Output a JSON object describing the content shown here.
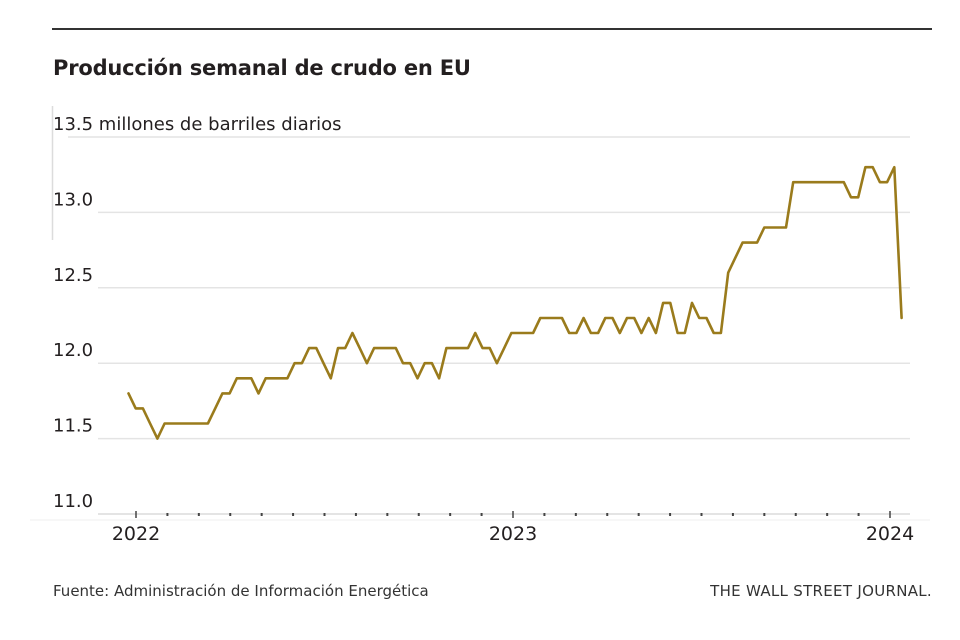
{
  "header": {
    "title": "Producción semanal de crudo en EU"
  },
  "footer": {
    "source": "Fuente: Administración de Información Energética",
    "brand": "THE WALL STREET JOURNAL."
  },
  "colors": {
    "line": "#9a7b1c",
    "grid": "#e4e4e4",
    "axis": "#dcdcdc",
    "text": "#231f20"
  },
  "chart_data": {
    "type": "line",
    "title": "Producción semanal de crudo en EU",
    "ylabel": "millones de barriles diarios",
    "xlabel": "",
    "ylim": [
      11.0,
      13.5
    ],
    "yticks": [
      11.0,
      11.5,
      12.0,
      12.5,
      13.0,
      13.5
    ],
    "ytick_labels": [
      "11.0",
      "11.5",
      "12.0",
      "12.5",
      "13.0",
      "13.5 millones de barriles diarios"
    ],
    "xlim_years": [
      2021.98,
      2024.05
    ],
    "xticks_major": [
      2022,
      2023,
      2024
    ],
    "xtick_labels": [
      "2022",
      "2023",
      "2024"
    ],
    "xticks_minor": "monthly",
    "grid": true,
    "legend": "none",
    "series": [
      {
        "name": "Producción semanal de crudo",
        "start_year": 2021.98,
        "step_weeks": 1,
        "values": [
          11.8,
          11.7,
          11.7,
          11.6,
          11.5,
          11.6,
          11.6,
          11.6,
          11.6,
          11.6,
          11.6,
          11.6,
          11.7,
          11.8,
          11.8,
          11.9,
          11.9,
          11.9,
          11.8,
          11.9,
          11.9,
          11.9,
          11.9,
          12.0,
          12.0,
          12.1,
          12.1,
          12.0,
          11.9,
          12.1,
          12.1,
          12.2,
          12.1,
          12.0,
          12.1,
          12.1,
          12.1,
          12.1,
          12.0,
          12.0,
          11.9,
          12.0,
          12.0,
          11.9,
          12.1,
          12.1,
          12.1,
          12.1,
          12.2,
          12.1,
          12.1,
          12.0,
          12.1,
          12.2,
          12.2,
          12.2,
          12.2,
          12.3,
          12.3,
          12.3,
          12.3,
          12.2,
          12.2,
          12.3,
          12.2,
          12.2,
          12.3,
          12.3,
          12.2,
          12.3,
          12.3,
          12.2,
          12.3,
          12.2,
          12.4,
          12.4,
          12.2,
          12.2,
          12.4,
          12.3,
          12.3,
          12.2,
          12.2,
          12.6,
          12.7,
          12.8,
          12.8,
          12.8,
          12.9,
          12.9,
          12.9,
          12.9,
          13.2,
          13.2,
          13.2,
          13.2,
          13.2,
          13.2,
          13.2,
          13.2,
          13.1,
          13.1,
          13.3,
          13.3,
          13.2,
          13.2,
          13.3,
          12.3
        ]
      }
    ]
  }
}
